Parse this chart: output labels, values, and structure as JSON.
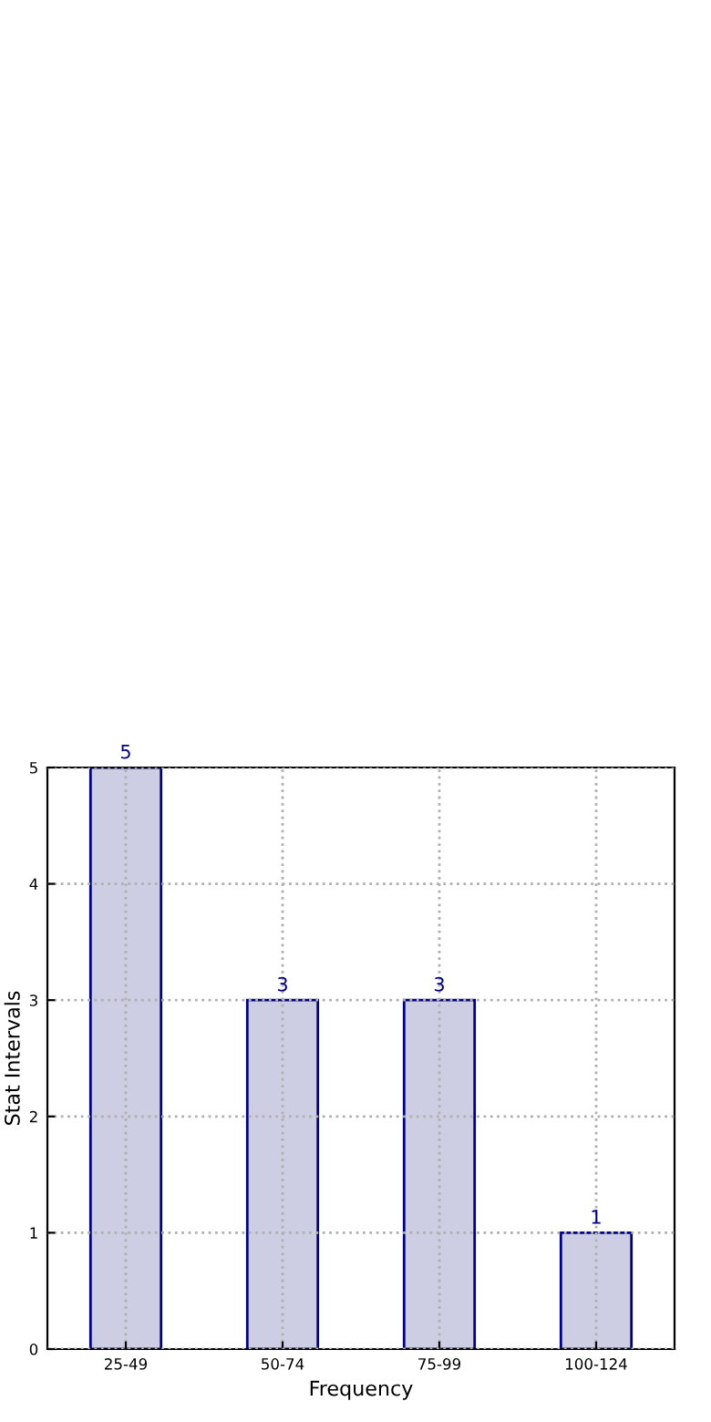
{
  "chart_data": {
    "type": "bar",
    "xlabel": "Frequency",
    "ylabel": "Stat Intervals",
    "categories": [
      "25-49",
      "50-74",
      "75-99",
      "100-124"
    ],
    "values": [
      5,
      3,
      3,
      1
    ],
    "color": "#cdcde3",
    "ylim": [
      0,
      5
    ],
    "yticks": [
      0,
      1,
      2,
      3,
      4,
      5
    ],
    "grid": true,
    "data_labels": true
  }
}
